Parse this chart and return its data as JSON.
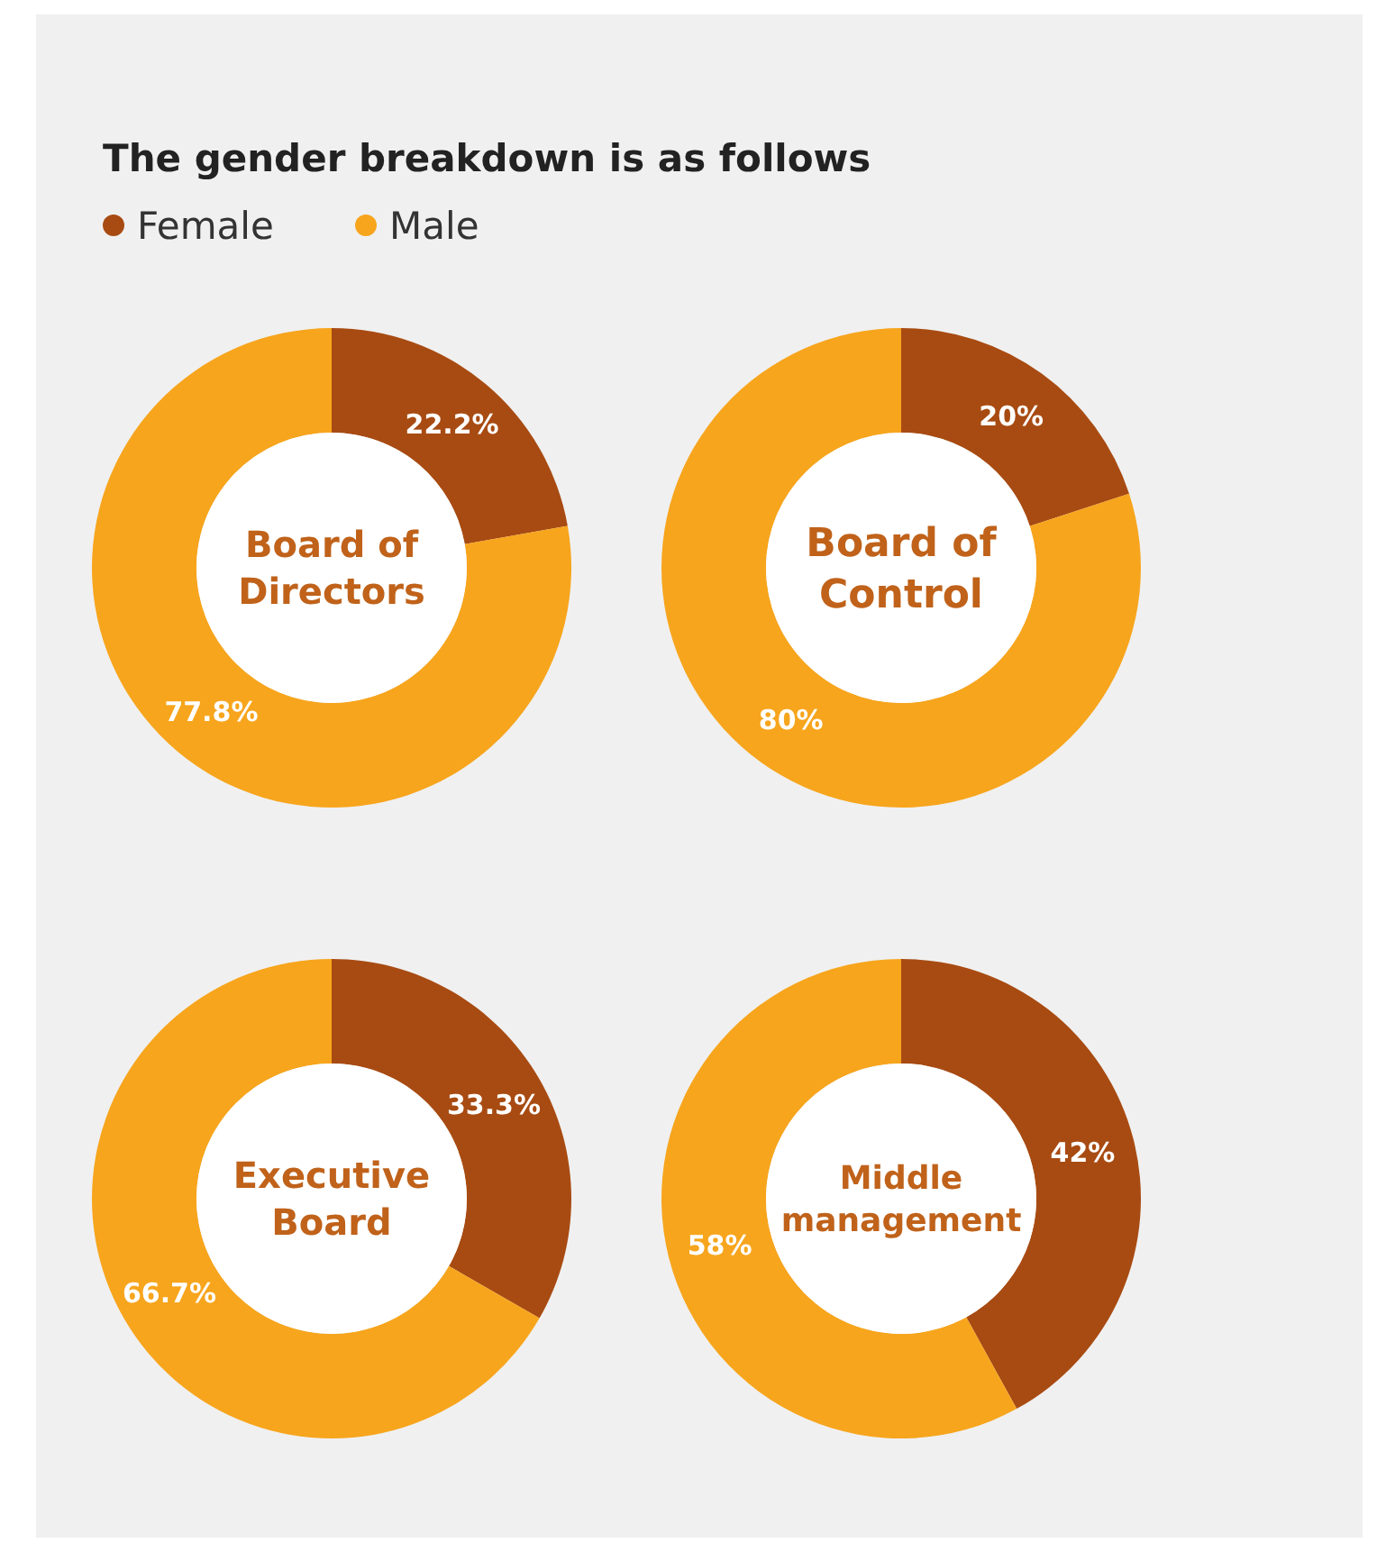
{
  "chart_data": [
    {
      "type": "donut",
      "title": "The gender breakdown is as follows",
      "legend": "top left",
      "annotations": [
        "Board of Directors"
      ],
      "categories": [
        "Female",
        "Male"
      ],
      "values": [
        22.2,
        77.8
      ],
      "colors": [
        "#a84b12",
        "#f7a51d"
      ],
      "value_labels": [
        "22.2%",
        "77.8%"
      ]
    },
    {
      "type": "donut",
      "annotations": [
        "Board of Control"
      ],
      "categories": [
        null,
        null
      ],
      "values": [
        20,
        80
      ],
      "colors": [
        "#a84b12",
        "#f7a51d"
      ],
      "value_labels": [
        "20%",
        "80%"
      ]
    },
    {
      "type": "donut",
      "annotations": [
        "Executive Board"
      ],
      "categories": [
        null,
        null
      ],
      "values": [
        33.3,
        66.7
      ],
      "colors": [
        "#a84b12",
        "#f7a51d"
      ],
      "value_labels": [
        "33.3%",
        "66.7%"
      ]
    },
    {
      "type": "donut",
      "annotations": [
        "Middle management"
      ],
      "categories": [
        null,
        null
      ],
      "values": [
        42,
        58
      ],
      "colors": [
        "#a84b12",
        "#f7a51d"
      ],
      "value_labels": [
        "42%",
        "58%"
      ]
    }
  ]
}
